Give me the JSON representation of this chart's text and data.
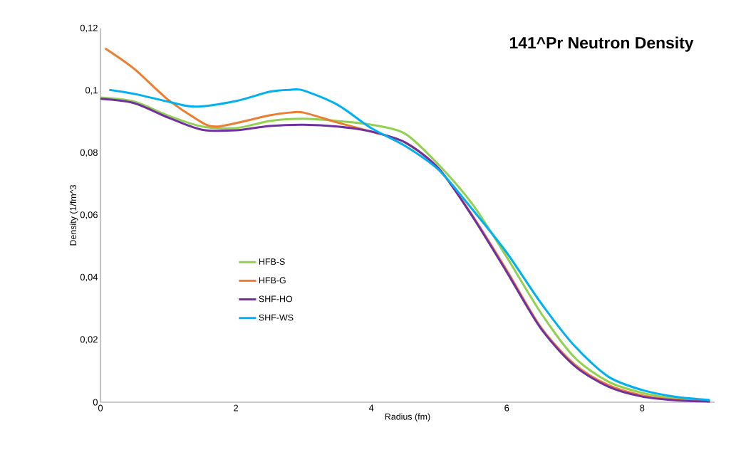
{
  "chart_data": {
    "type": "line",
    "title": "141^Pr Neutron Density",
    "xlabel": "Radius (fm)",
    "ylabel": "Density (1/fm^3",
    "xlim": [
      0,
      9.07
    ],
    "ylim": [
      0,
      0.12
    ],
    "xticks": [
      0,
      2,
      4,
      6,
      8
    ],
    "yticks": [
      {
        "value": 0,
        "label": "0"
      },
      {
        "value": 0.02,
        "label": "0,02"
      },
      {
        "value": 0.04,
        "label": "0,04"
      },
      {
        "value": 0.06,
        "label": "0,06"
      },
      {
        "value": 0.08,
        "label": "0,08"
      },
      {
        "value": 0.1,
        "label": "0,1"
      },
      {
        "value": 0.12,
        "label": "0,12"
      }
    ],
    "legend": "left",
    "grid": false,
    "marker": "none",
    "line_style": "solid",
    "series": [
      {
        "name": "HFB-S",
        "color": "#92d050",
        "x": [
          0,
          0.5,
          1,
          1.5,
          2,
          2.5,
          3,
          3.5,
          4,
          4.5,
          5,
          5.5,
          6,
          6.5,
          7,
          7.5,
          8,
          8.5,
          9
        ],
        "values": [
          0.0978,
          0.0965,
          0.092,
          0.0885,
          0.088,
          0.0903,
          0.091,
          0.0903,
          0.0891,
          0.0862,
          0.0761,
          0.0634,
          0.0466,
          0.0288,
          0.0144,
          0.0066,
          0.003,
          0.0012,
          0.0004
        ]
      },
      {
        "name": "HFB-G",
        "color": "#ed7d31",
        "x": [
          0.07,
          0.5,
          1,
          1.5,
          1.7,
          2,
          2.5,
          2.8,
          3,
          3.5,
          4,
          4.5,
          5,
          5.5,
          6,
          6.5,
          7,
          7.5,
          8,
          8.5,
          9
        ],
        "values": [
          0.1136,
          0.107,
          0.0971,
          0.0898,
          0.0885,
          0.0896,
          0.0921,
          0.093,
          0.093,
          0.0898,
          0.0869,
          0.0834,
          0.0749,
          0.0597,
          0.0424,
          0.0242,
          0.0122,
          0.0055,
          0.0022,
          0.0008,
          0.0003
        ]
      },
      {
        "name": "SHF-HO",
        "color": "#7030a0",
        "x": [
          0,
          0.5,
          1,
          1.5,
          2,
          2.5,
          3,
          3.5,
          4,
          4.5,
          5,
          5.5,
          6,
          6.5,
          7,
          7.5,
          8,
          8.5,
          9
        ],
        "values": [
          0.0974,
          0.096,
          0.0914,
          0.0875,
          0.0873,
          0.0887,
          0.0891,
          0.0885,
          0.0869,
          0.0834,
          0.0749,
          0.0594,
          0.0418,
          0.0238,
          0.0117,
          0.005,
          0.0018,
          0.0006,
          0.0002
        ]
      },
      {
        "name": "SHF-WS",
        "color": "#00b0f0",
        "x": [
          0.13,
          0.5,
          1,
          1.4,
          2,
          2.5,
          2.8,
          3,
          3.5,
          4,
          4.5,
          5,
          5.5,
          6,
          6.5,
          7,
          7.5,
          8,
          8.5,
          9
        ],
        "values": [
          0.1003,
          0.099,
          0.0965,
          0.0949,
          0.0967,
          0.0997,
          0.1003,
          0.1001,
          0.0955,
          0.088,
          0.0823,
          0.0745,
          0.0617,
          0.048,
          0.032,
          0.0181,
          0.0082,
          0.0039,
          0.0017,
          0.0007
        ]
      }
    ]
  }
}
